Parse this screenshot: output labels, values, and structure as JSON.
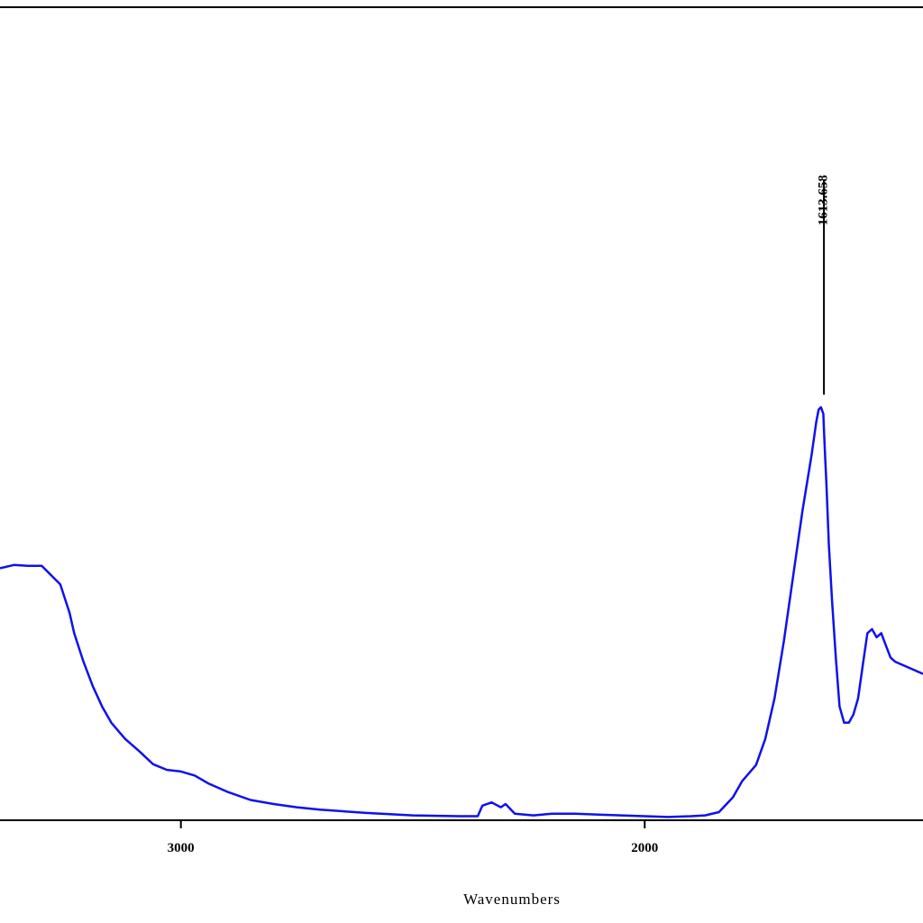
{
  "chart_data": {
    "type": "line",
    "title": "",
    "xlabel": "Wavenumbers",
    "ylabel": "",
    "x_reversed": true,
    "xlim": [
      3390,
      1400
    ],
    "ylim": [
      0,
      100
    ],
    "x_ticks": [
      {
        "value": 3000,
        "label": "3000"
      },
      {
        "value": 2000,
        "label": "2000"
      }
    ],
    "grid": false,
    "line_color": "#1010ee",
    "annotations": [
      {
        "x": 1613.6,
        "y": 50.8,
        "label": "1613.658"
      }
    ],
    "series": [
      {
        "x": [
          3390,
          3360,
          3330,
          3300,
          3260,
          3240,
          3230,
          3210,
          3190,
          3170,
          3150,
          3120,
          3090,
          3060,
          3030,
          3000,
          2970,
          2940,
          2900,
          2850,
          2800,
          2750,
          2700,
          2600,
          2500,
          2400,
          2360,
          2350,
          2330,
          2310,
          2300,
          2280,
          2240,
          2200,
          2150,
          2100,
          2050,
          2000,
          1950,
          1900,
          1870,
          1840,
          1810,
          1790,
          1760,
          1740,
          1720,
          1700,
          1680,
          1660,
          1640,
          1630,
          1625,
          1620,
          1615,
          1612,
          1608,
          1603,
          1596,
          1588,
          1580,
          1570,
          1560,
          1550,
          1540,
          1530,
          1520,
          1510,
          1505,
          1500,
          1490,
          1480,
          1470,
          1460,
          1440,
          1420,
          1400
        ],
        "y": [
          31.0,
          31.4,
          31.3,
          31.3,
          29.0,
          25.5,
          23.0,
          19.5,
          16.5,
          14.0,
          12.0,
          10.0,
          8.5,
          6.9,
          6.2,
          6.0,
          5.5,
          4.5,
          3.5,
          2.5,
          2.0,
          1.6,
          1.3,
          0.9,
          0.6,
          0.5,
          0.5,
          1.8,
          2.2,
          1.6,
          2.0,
          0.8,
          0.6,
          0.8,
          0.8,
          0.7,
          0.6,
          0.5,
          0.4,
          0.5,
          0.6,
          1.0,
          2.8,
          4.8,
          6.8,
          10.0,
          15.0,
          22.0,
          30.0,
          38.0,
          45.0,
          49.0,
          50.5,
          50.8,
          50.0,
          46.0,
          41.0,
          34.0,
          27.0,
          20.0,
          14.0,
          12.0,
          12.0,
          13.0,
          15.0,
          19.0,
          23.0,
          23.5,
          23.0,
          22.5,
          23.0,
          21.5,
          20.0,
          19.5,
          19.0,
          18.5,
          18.0
        ]
      }
    ]
  }
}
